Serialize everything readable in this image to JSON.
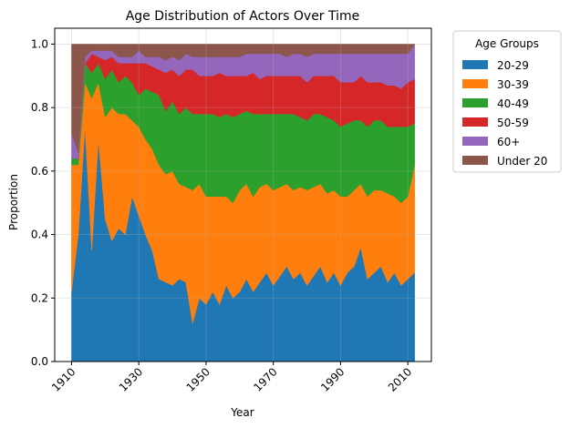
{
  "chart_data": {
    "type": "area",
    "stacked": true,
    "title": "Age Distribution of Actors Over Time",
    "xlabel": "Year",
    "ylabel": "Proportion",
    "xlim": [
      1905,
      2017
    ],
    "ylim": [
      0,
      1.05
    ],
    "x_ticks": [
      1910,
      1930,
      1950,
      1970,
      1990,
      2010
    ],
    "y_ticks": [
      0.0,
      0.2,
      0.4,
      0.6,
      0.8,
      1.0
    ],
    "grid": true,
    "legend": {
      "title": "Age Groups",
      "position": "outside-right"
    },
    "x": [
      1910,
      1912,
      1914,
      1916,
      1918,
      1920,
      1922,
      1924,
      1926,
      1928,
      1930,
      1932,
      1934,
      1936,
      1938,
      1940,
      1942,
      1944,
      1946,
      1948,
      1950,
      1952,
      1954,
      1956,
      1958,
      1960,
      1962,
      1964,
      1966,
      1968,
      1970,
      1972,
      1974,
      1976,
      1978,
      1980,
      1982,
      1984,
      1986,
      1988,
      1990,
      1992,
      1994,
      1996,
      1998,
      2000,
      2002,
      2004,
      2006,
      2008,
      2010,
      2012
    ],
    "series": [
      {
        "name": "20-29",
        "color": "#1f77b4",
        "values": [
          0.22,
          0.4,
          0.74,
          0.35,
          0.7,
          0.45,
          0.38,
          0.42,
          0.4,
          0.52,
          0.46,
          0.4,
          0.35,
          0.26,
          0.25,
          0.24,
          0.26,
          0.25,
          0.12,
          0.2,
          0.18,
          0.22,
          0.18,
          0.24,
          0.2,
          0.22,
          0.26,
          0.22,
          0.25,
          0.28,
          0.24,
          0.27,
          0.3,
          0.26,
          0.28,
          0.24,
          0.27,
          0.3,
          0.25,
          0.28,
          0.24,
          0.28,
          0.3,
          0.36,
          0.26,
          0.28,
          0.3,
          0.25,
          0.28,
          0.24,
          0.26,
          0.28
        ]
      },
      {
        "name": "30-39",
        "color": "#ff7f0e",
        "values": [
          0.4,
          0.22,
          0.14,
          0.48,
          0.18,
          0.32,
          0.42,
          0.36,
          0.38,
          0.24,
          0.28,
          0.3,
          0.32,
          0.36,
          0.34,
          0.36,
          0.3,
          0.3,
          0.42,
          0.36,
          0.34,
          0.3,
          0.34,
          0.28,
          0.3,
          0.32,
          0.3,
          0.3,
          0.3,
          0.28,
          0.3,
          0.28,
          0.26,
          0.28,
          0.27,
          0.3,
          0.28,
          0.26,
          0.28,
          0.26,
          0.28,
          0.24,
          0.24,
          0.2,
          0.26,
          0.26,
          0.24,
          0.28,
          0.24,
          0.26,
          0.26,
          0.34
        ]
      },
      {
        "name": "40-49",
        "color": "#2ca02c",
        "values": [
          0.02,
          0.02,
          0.06,
          0.08,
          0.06,
          0.12,
          0.12,
          0.1,
          0.12,
          0.12,
          0.1,
          0.16,
          0.18,
          0.22,
          0.2,
          0.22,
          0.22,
          0.25,
          0.24,
          0.22,
          0.26,
          0.26,
          0.25,
          0.26,
          0.27,
          0.24,
          0.23,
          0.26,
          0.23,
          0.22,
          0.24,
          0.23,
          0.22,
          0.24,
          0.22,
          0.22,
          0.23,
          0.22,
          0.24,
          0.22,
          0.22,
          0.23,
          0.22,
          0.2,
          0.22,
          0.22,
          0.22,
          0.21,
          0.22,
          0.24,
          0.22,
          0.13
        ]
      },
      {
        "name": "50-59",
        "color": "#d62728",
        "values": [
          0.0,
          0.0,
          0.0,
          0.06,
          0.02,
          0.06,
          0.04,
          0.06,
          0.04,
          0.06,
          0.1,
          0.08,
          0.08,
          0.08,
          0.12,
          0.1,
          0.12,
          0.12,
          0.14,
          0.12,
          0.12,
          0.12,
          0.14,
          0.12,
          0.13,
          0.12,
          0.11,
          0.13,
          0.11,
          0.12,
          0.12,
          0.12,
          0.12,
          0.12,
          0.13,
          0.12,
          0.12,
          0.12,
          0.13,
          0.14,
          0.14,
          0.13,
          0.12,
          0.14,
          0.14,
          0.12,
          0.12,
          0.13,
          0.13,
          0.12,
          0.14,
          0.14
        ]
      },
      {
        "name": "60+",
        "color": "#9467bd",
        "values": [
          0.08,
          0.02,
          0.02,
          0.01,
          0.02,
          0.03,
          0.02,
          0.02,
          0.02,
          0.02,
          0.04,
          0.02,
          0.03,
          0.04,
          0.04,
          0.04,
          0.05,
          0.05,
          0.04,
          0.06,
          0.06,
          0.06,
          0.05,
          0.06,
          0.06,
          0.06,
          0.07,
          0.06,
          0.08,
          0.07,
          0.07,
          0.07,
          0.06,
          0.07,
          0.07,
          0.08,
          0.07,
          0.07,
          0.07,
          0.07,
          0.09,
          0.09,
          0.09,
          0.07,
          0.09,
          0.09,
          0.09,
          0.1,
          0.1,
          0.11,
          0.09,
          0.11
        ]
      },
      {
        "name": "Under 20",
        "color": "#8c564b",
        "values": [
          0.28,
          0.34,
          0.04,
          0.02,
          0.02,
          0.02,
          0.02,
          0.04,
          0.04,
          0.04,
          0.02,
          0.04,
          0.04,
          0.04,
          0.05,
          0.04,
          0.05,
          0.03,
          0.04,
          0.04,
          0.04,
          0.04,
          0.04,
          0.04,
          0.04,
          0.04,
          0.03,
          0.03,
          0.03,
          0.03,
          0.03,
          0.03,
          0.04,
          0.03,
          0.03,
          0.04,
          0.03,
          0.03,
          0.03,
          0.03,
          0.03,
          0.03,
          0.03,
          0.03,
          0.03,
          0.03,
          0.03,
          0.03,
          0.03,
          0.03,
          0.03,
          0.0
        ]
      }
    ]
  }
}
